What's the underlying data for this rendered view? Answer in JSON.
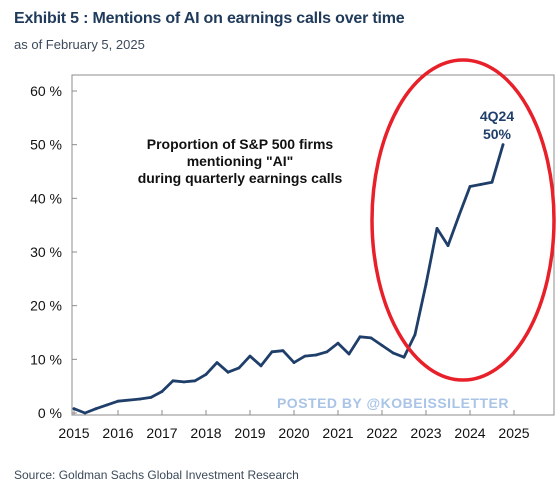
{
  "header": {
    "title": "Exhibit 5 : Mentions of AI on earnings calls over time",
    "subtitle": "as of February 5, 2025"
  },
  "footer": {
    "source": "Source: Goldman Sachs Global Investment Research"
  },
  "chart_data": {
    "type": "line",
    "title": "Proportion of S&P 500 firms mentioning \"AI\" during quarterly earnings calls",
    "annotation_lines": [
      "Proportion of S&P 500 firms",
      "mentioning \"AI\"",
      "during quarterly earnings calls"
    ],
    "end_label": [
      "4Q24",
      "50%"
    ],
    "watermark": "POSTED BY @KOBEISSILETTER",
    "xlim": [
      2015,
      2025
    ],
    "ylim": [
      0,
      60
    ],
    "x_ticks": [
      "2015",
      "2016",
      "2017",
      "2018",
      "2019",
      "2020",
      "2021",
      "2022",
      "2023",
      "2024",
      "2025"
    ],
    "y_ticks": [
      "0 %",
      "10 %",
      "20 %",
      "30 %",
      "40 %",
      "50 %",
      "60 %"
    ],
    "grid": false,
    "line_color": "#1f3f6a",
    "highlight_color": "#e8202a",
    "series": [
      {
        "x": [
          2015.0,
          2015.25,
          2015.5,
          2015.75,
          2016.0,
          2016.25,
          2016.5,
          2016.75,
          2017.0,
          2017.25,
          2017.5,
          2017.75,
          2018.0,
          2018.25,
          2018.5,
          2018.75,
          2019.0,
          2019.25,
          2019.5,
          2019.75,
          2020.0,
          2020.25,
          2020.5,
          2020.75,
          2021.0,
          2021.25,
          2021.5,
          2021.75,
          2022.0,
          2022.25,
          2022.5,
          2022.75,
          2023.0,
          2023.25,
          2023.5,
          2023.75,
          2024.0,
          2024.25,
          2024.5,
          2024.75
        ],
        "y": [
          0.8,
          0.0,
          0.8,
          1.5,
          2.2,
          2.4,
          2.6,
          2.9,
          4.0,
          6.0,
          5.8,
          6.0,
          7.2,
          9.4,
          7.6,
          8.4,
          10.6,
          8.8,
          11.4,
          11.6,
          9.4,
          10.6,
          10.8,
          11.4,
          13.0,
          11.0,
          14.2,
          14.0,
          12.6,
          11.2,
          10.4,
          14.6,
          24.0,
          34.4,
          31.2,
          36.8,
          42.2,
          42.6,
          43.0,
          50.0
        ]
      }
    ]
  }
}
